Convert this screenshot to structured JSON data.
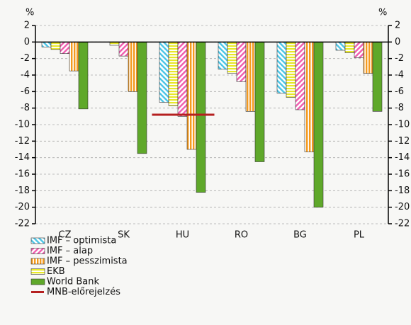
{
  "chart_data": {
    "type": "bar",
    "y_unit": "%",
    "categories": [
      "CZ",
      "SK",
      "HU",
      "RO",
      "BG",
      "PL"
    ],
    "series": [
      {
        "name": "IMF – optimista",
        "color": "#4fc6e6",
        "values": [
          -0.6,
          null,
          -7.3,
          -3.3,
          -6.2,
          -1.0
        ]
      },
      {
        "name": "EKB",
        "color": "#e8e82a",
        "values": [
          -0.9,
          -0.4,
          -7.7,
          -3.8,
          -6.7,
          -1.3
        ]
      },
      {
        "name": "IMF – alap",
        "color": "#f060b0",
        "values": [
          -1.4,
          -1.7,
          -9.0,
          -4.8,
          -8.2,
          -1.9
        ]
      },
      {
        "name": "IMF – pesszimista",
        "color": "#f59a1e",
        "values": [
          -3.5,
          -6.0,
          -13.0,
          -8.4,
          -13.3,
          -3.8
        ]
      },
      {
        "name": "World Bank",
        "color": "#5fa82a",
        "values": [
          -8.1,
          -13.5,
          -18.2,
          -14.5,
          -20.0,
          -8.4
        ]
      }
    ],
    "forecast": {
      "name": "MNB-előrejelzés",
      "color": "#b52020",
      "category": "HU",
      "value": -8.8
    },
    "ylim": [
      -22,
      2
    ],
    "yticks": [
      -22,
      -20,
      -18,
      -16,
      -14,
      -12,
      -10,
      -8,
      -6,
      -4,
      -2,
      0,
      2
    ],
    "y2lim": [
      -22,
      2
    ],
    "y2ticks": [
      -22,
      -20,
      -18,
      -16,
      -14,
      -12,
      -10,
      -8,
      -6,
      -4,
      -2,
      0,
      2
    ],
    "grid": true
  }
}
